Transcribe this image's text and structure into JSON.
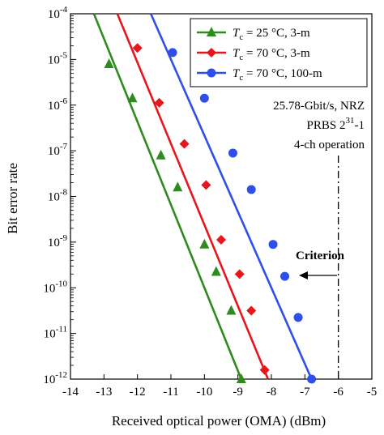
{
  "chart_data": {
    "type": "line",
    "xlabel": "Received optical power (OMA) (dBm)",
    "ylabel": "Bit error rate",
    "xlim": [
      -14,
      -5
    ],
    "ylim_log10": [
      -12,
      -4
    ],
    "y_scale": "log",
    "x_ticks": [
      "-14",
      "-13",
      "-12",
      "-11",
      "-10",
      "-9",
      "-8",
      "-7",
      "-6",
      "-5"
    ],
    "y_ticks": [
      {
        "base": "10",
        "exp": "-4",
        "value": -4
      },
      {
        "base": "10",
        "exp": "-5",
        "value": -5
      },
      {
        "base": "10",
        "exp": "-6",
        "value": -6
      },
      {
        "base": "10",
        "exp": "-7",
        "value": -7
      },
      {
        "base": "10",
        "exp": "-8",
        "value": -8
      },
      {
        "base": "10",
        "exp": "-9",
        "value": -9
      },
      {
        "base": "10",
        "exp": "-10",
        "value": -10
      },
      {
        "base": "10",
        "exp": "-11",
        "value": -11
      },
      {
        "base": "10",
        "exp": "-12",
        "value": -12
      }
    ],
    "legend_position": "top-right",
    "series": [
      {
        "legend_prefix": "T",
        "legend_sub": "c",
        "legend_rest": " = 25 °C, 3-m",
        "color": "#2e8b1e",
        "marker": "triangle",
        "points": [
          {
            "x": -12.85,
            "y_log10": -5.1
          },
          {
            "x": -12.15,
            "y_log10": -5.85
          },
          {
            "x": -11.3,
            "y_log10": -7.1
          },
          {
            "x": -10.8,
            "y_log10": -7.8
          },
          {
            "x": -10.0,
            "y_log10": -9.05
          },
          {
            "x": -9.65,
            "y_log10": -9.65
          },
          {
            "x": -9.2,
            "y_log10": -10.5
          },
          {
            "x": -8.9,
            "y_log10": -12.0
          }
        ],
        "fit": [
          [
            -13.3,
            -4.0
          ],
          [
            -8.9,
            -12.0
          ]
        ]
      },
      {
        "legend_prefix": "T",
        "legend_sub": "c",
        "legend_rest": " = 70 °C, 3-m",
        "color": "#e8151b",
        "marker": "diamond",
        "points": [
          {
            "x": -12.0,
            "y_log10": -4.75
          },
          {
            "x": -11.35,
            "y_log10": -5.95
          },
          {
            "x": -10.6,
            "y_log10": -6.85
          },
          {
            "x": -9.95,
            "y_log10": -7.75
          },
          {
            "x": -9.5,
            "y_log10": -8.95
          },
          {
            "x": -8.95,
            "y_log10": -9.7
          },
          {
            "x": -8.6,
            "y_log10": -10.5
          },
          {
            "x": -8.2,
            "y_log10": -11.8
          }
        ],
        "fit": [
          [
            -12.6,
            -4.0
          ],
          [
            -8.1,
            -12.0
          ]
        ]
      },
      {
        "legend_prefix": "T",
        "legend_sub": "c",
        "legend_rest": " = 70 °C, 100-m",
        "color": "#2f4fe8",
        "marker": "circle",
        "points": [
          {
            "x": -10.95,
            "y_log10": -4.85
          },
          {
            "x": -10.0,
            "y_log10": -5.85
          },
          {
            "x": -9.15,
            "y_log10": -7.05
          },
          {
            "x": -8.6,
            "y_log10": -7.85
          },
          {
            "x": -7.95,
            "y_log10": -9.05
          },
          {
            "x": -7.6,
            "y_log10": -9.75
          },
          {
            "x": -7.2,
            "y_log10": -10.65
          },
          {
            "x": -6.8,
            "y_log10": -12.0
          }
        ],
        "fit": [
          [
            -11.6,
            -4.0
          ],
          [
            -6.8,
            -12.0
          ]
        ]
      }
    ],
    "annotations": {
      "line1": "25.78-Gbit/s, NRZ",
      "line2_base": "PRBS 2",
      "line2_sup": "31",
      "line2_rest": "-1",
      "line3": "4-ch operation",
      "criterion_label": "Criterion",
      "criterion_x": -6,
      "criterion_y_log10": -12
    }
  }
}
